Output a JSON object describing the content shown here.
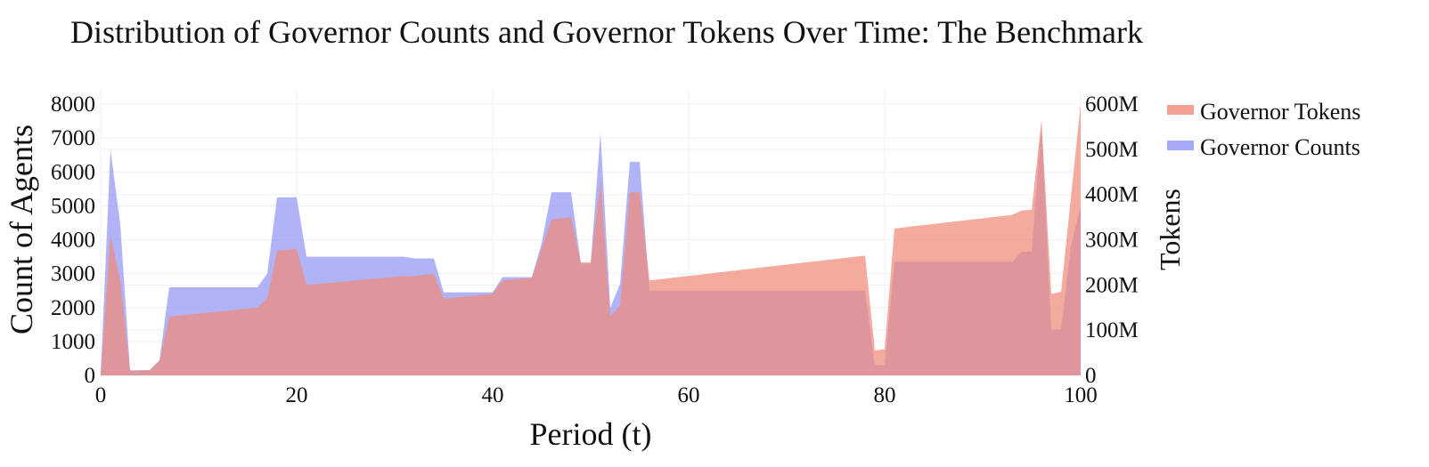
{
  "chart_data": {
    "type": "area",
    "title": "Distribution of Governor Counts and Governor Tokens Over Time: The Benchmark",
    "xlabel": "Period (t)",
    "ylabel": "Count of Agents",
    "y2label": "Tokens",
    "xlim": [
      0,
      100
    ],
    "ylim": [
      0,
      8500
    ],
    "y2lim": [
      0,
      637500000
    ],
    "x_ticks": [
      "0",
      "20",
      "40",
      "60",
      "80",
      "100"
    ],
    "y_ticks": [
      "0",
      "1000",
      "2000",
      "3000",
      "4000",
      "5000",
      "6000",
      "7000",
      "8000"
    ],
    "y2_ticks": [
      "0",
      "100M",
      "200M",
      "300M",
      "400M",
      "500M",
      "600M"
    ],
    "grid": true,
    "legend_position": "top-right",
    "series": [
      {
        "name": "Governor Tokens",
        "axis": "right",
        "color": "#f08a78",
        "x": [
          0,
          1,
          2,
          3,
          5,
          6,
          7,
          16,
          17,
          18,
          20,
          21,
          31,
          32,
          34,
          35,
          40,
          41,
          44,
          46,
          48,
          49,
          50,
          51,
          52,
          53,
          54,
          55,
          56,
          78,
          79,
          80,
          81,
          93,
          94,
          95,
          96,
          97,
          98,
          100
        ],
        "values": [
          0,
          310000000,
          210000000,
          10000000,
          12000000,
          32000000,
          130000000,
          150000000,
          170000000,
          276000000,
          280000000,
          200000000,
          220000000,
          220000000,
          225000000,
          170000000,
          180000000,
          210000000,
          216000000,
          345000000,
          350000000,
          250000000,
          250000000,
          430000000,
          130000000,
          155000000,
          405000000,
          405000000,
          210000000,
          265000000,
          55000000,
          58000000,
          325000000,
          355000000,
          365000000,
          366000000,
          565000000,
          180000000,
          185000000,
          600000000
        ]
      },
      {
        "name": "Governor Counts",
        "axis": "left",
        "color": "#8f94f4",
        "x": [
          0,
          1,
          2,
          3,
          5,
          6,
          7,
          16,
          17,
          18,
          20,
          21,
          31,
          32,
          34,
          35,
          40,
          41,
          44,
          45,
          46,
          48,
          49,
          50,
          51,
          52,
          53,
          54,
          55,
          56,
          78,
          79,
          80,
          81,
          93,
          94,
          95,
          96,
          97,
          98,
          99,
          100
        ],
        "values": [
          0,
          6650,
          4450,
          150,
          150,
          450,
          2600,
          2600,
          3000,
          5250,
          5250,
          3500,
          3500,
          3450,
          3450,
          2450,
          2450,
          2900,
          2900,
          3900,
          5400,
          5400,
          3300,
          3300,
          7150,
          2000,
          2700,
          6300,
          6300,
          2500,
          2500,
          300,
          300,
          3350,
          3350,
          3650,
          3650,
          7400,
          1350,
          1350,
          3800,
          5000
        ]
      }
    ]
  }
}
